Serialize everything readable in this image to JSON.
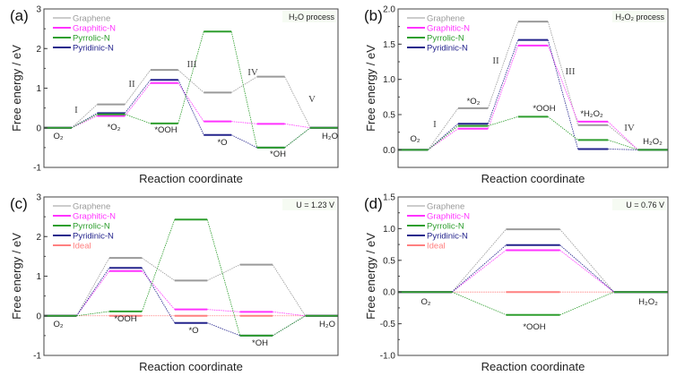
{
  "colors": {
    "Graphene": "#9a9a9a",
    "Graphitic-N": "#ff33ff",
    "Pyrrolic-N": "#2e9e2e",
    "Pyridinic-N": "#23238c",
    "Ideal": "#ff8080"
  },
  "chart_data": [
    {
      "panel": "(a)",
      "type": "line",
      "annotation": "H₂O process",
      "xlabel": "Reaction coordinate",
      "ylabel": "Free energy / eV",
      "ylim": [
        -1,
        3
      ],
      "yticks": [
        "-1",
        "0",
        "1",
        "2",
        "3"
      ],
      "states": [
        "O₂",
        "*O₂",
        "*OOH",
        "*O",
        "*OH",
        "H₂O"
      ],
      "steps": [
        "I",
        "II",
        "III",
        "IV",
        "V"
      ],
      "legend_placement": "top-left",
      "series": [
        {
          "name": "Graphene",
          "values": [
            0,
            0.59,
            1.46,
            0.89,
            1.29,
            0
          ]
        },
        {
          "name": "Graphitic-N",
          "values": [
            0,
            0.3,
            1.13,
            0.16,
            0.1,
            0
          ]
        },
        {
          "name": "Pyrrolic-N",
          "values": [
            0,
            0.34,
            0.11,
            2.43,
            -0.5,
            0
          ]
        },
        {
          "name": "Pyridinic-N",
          "values": [
            0,
            0.37,
            1.21,
            -0.18,
            -0.5,
            0
          ]
        }
      ]
    },
    {
      "panel": "(b)",
      "type": "line",
      "annotation": "H₂O₂ process",
      "xlabel": "Reaction coordinate",
      "ylabel": "Free energy / eV",
      "ylim": [
        -0.25,
        2.0
      ],
      "yticks": [
        "0.0",
        "0.5",
        "1.0",
        "1.5",
        "2.0"
      ],
      "states": [
        "O₂",
        "*O₂",
        "*OOH",
        "*H₂O₂",
        "H₂O₂"
      ],
      "steps": [
        "I",
        "II",
        "III",
        "IV"
      ],
      "legend_placement": "top-left",
      "series": [
        {
          "name": "Graphene",
          "values": [
            0,
            0.59,
            1.82,
            0.35,
            0
          ]
        },
        {
          "name": "Graphitic-N",
          "values": [
            0,
            0.3,
            1.48,
            0.4,
            0
          ]
        },
        {
          "name": "Pyrrolic-N",
          "values": [
            0,
            0.34,
            0.47,
            0.14,
            0
          ]
        },
        {
          "name": "Pyridinic-N",
          "values": [
            0,
            0.37,
            1.56,
            0.01,
            0
          ]
        }
      ]
    },
    {
      "panel": "(c)",
      "type": "line",
      "annotation": "U = 1.23 V",
      "xlabel": "Reaction coordinate",
      "ylabel": "Free energy / eV",
      "ylim": [
        -1,
        3
      ],
      "yticks": [
        "-1",
        "0",
        "1",
        "2",
        "3"
      ],
      "states": [
        "O₂",
        "*OOH",
        "*O",
        "*OH",
        "H₂O"
      ],
      "steps": [],
      "legend_placement": "top-left",
      "series": [
        {
          "name": "Graphene",
          "values": [
            0,
            1.46,
            0.89,
            1.29,
            0
          ]
        },
        {
          "name": "Graphitic-N",
          "values": [
            0,
            1.13,
            0.16,
            0.1,
            0
          ]
        },
        {
          "name": "Pyrrolic-N",
          "values": [
            0,
            0.11,
            2.43,
            -0.5,
            0
          ]
        },
        {
          "name": "Pyridinic-N",
          "values": [
            0,
            1.21,
            -0.18,
            -0.5,
            0
          ]
        },
        {
          "name": "Ideal",
          "values": [
            0,
            0,
            0,
            0,
            0
          ]
        }
      ]
    },
    {
      "panel": "(d)",
      "type": "line",
      "annotation": "U = 0.76 V",
      "xlabel": "Reaction coordinate",
      "ylabel": "Free energy / eV",
      "ylim": [
        -1.0,
        1.5
      ],
      "yticks": [
        "-1.0",
        "-0.5",
        "0.0",
        "0.5",
        "1.0",
        "1.5"
      ],
      "states": [
        "O₂",
        "*OOH",
        "H₂O₂"
      ],
      "steps": [],
      "legend_placement": "top-left",
      "series": [
        {
          "name": "Graphene",
          "values": [
            0,
            0.99,
            0
          ]
        },
        {
          "name": "Graphitic-N",
          "values": [
            0,
            0.66,
            0
          ]
        },
        {
          "name": "Pyrrolic-N",
          "values": [
            0,
            -0.36,
            0
          ]
        },
        {
          "name": "Pyridinic-N",
          "values": [
            0,
            0.74,
            0
          ]
        },
        {
          "name": "Ideal",
          "values": [
            0,
            0,
            0
          ]
        }
      ]
    }
  ]
}
